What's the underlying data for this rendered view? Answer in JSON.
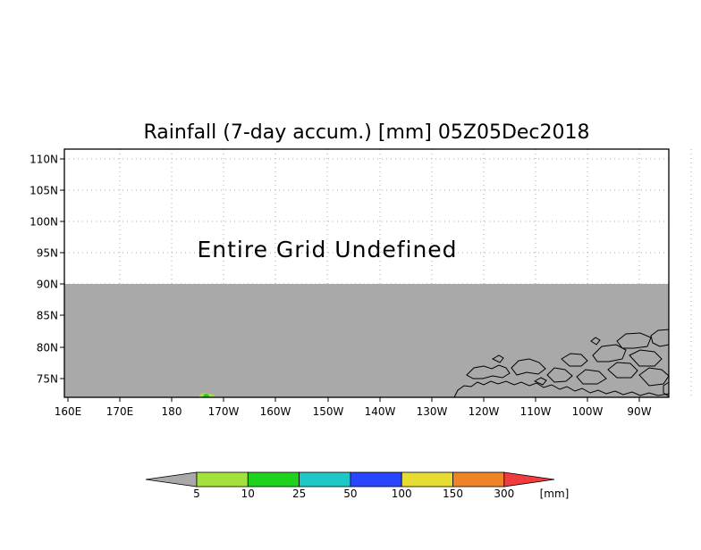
{
  "title": "Rainfall (7-day accum.) [mm] 05Z05Dec2018",
  "overlay_message": "Entire Grid Undefined",
  "map": {
    "lat_ticks": [
      "110N",
      "105N",
      "100N",
      "95N",
      "90N",
      "85N",
      "80N",
      "75N"
    ],
    "lon_ticks": [
      "160E",
      "170E",
      "180",
      "170W",
      "160W",
      "150W",
      "140W",
      "130W",
      "120W",
      "110W",
      "100W",
      "90W"
    ],
    "colors": {
      "undefined_fill": "#a9a9a9",
      "frame": "#000000",
      "grid": "#aaaaaa",
      "coastline": "#000000"
    }
  },
  "colorbar": {
    "unit": "[mm]",
    "labels": [
      "5",
      "10",
      "25",
      "50",
      "100",
      "150",
      "300"
    ],
    "colors": [
      "#a9a9a9",
      "#a3e23c",
      "#1ed21e",
      "#1ec8c8",
      "#2846ff",
      "#e6dc32",
      "#f08228",
      "#f03c3c"
    ]
  }
}
